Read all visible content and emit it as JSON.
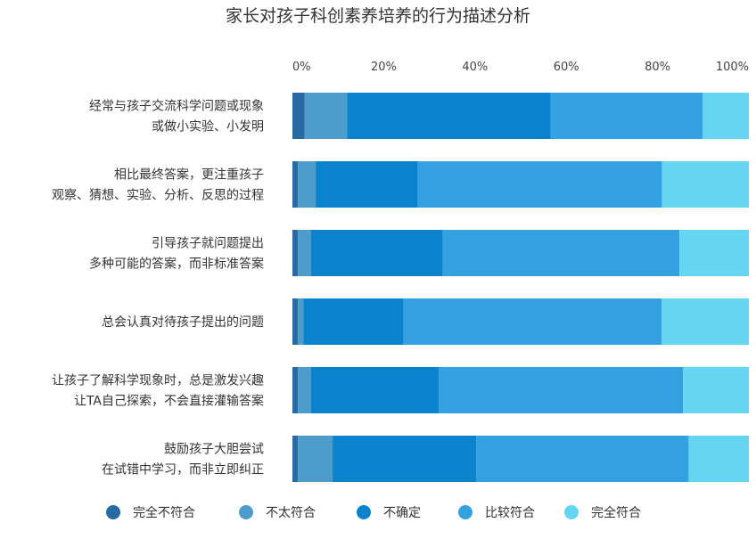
{
  "chart_data": {
    "type": "bar",
    "orientation": "horizontal",
    "stacked": true,
    "percent": true,
    "title": "家长对孩子科创素养培养的行为描述分析",
    "xlim": [
      0,
      100
    ],
    "x_ticks": [
      "0%",
      "20%",
      "40%",
      "60%",
      "80%",
      "100%"
    ],
    "legend_position": "bottom",
    "categories": [
      [
        "经常与孩子交流科学问题或现象",
        "或做小实验、小发明"
      ],
      [
        "相比最终答案，更注重孩子",
        "观察、猜想、实验、分析、反思的过程"
      ],
      [
        "引导孩子就问题提出",
        "多种可能的答案，而非标准答案"
      ],
      [
        "总会认真对待孩子提出的问题"
      ],
      [
        "让孩子了解科学现象时，总是激发兴趣",
        "让TA自己探索，不会直接灌输答案"
      ],
      [
        "鼓励孩子大胆尝试",
        "在试错中学习，而非立即纠正"
      ]
    ],
    "series": [
      {
        "name": "完全不符合",
        "color": "#2a6aa3",
        "values": [
          2.7,
          1.2,
          1.2,
          1.2,
          1.2,
          1.2
        ]
      },
      {
        "name": "不太符合",
        "color": "#4d9ccc",
        "values": [
          9.3,
          3.9,
          2.9,
          1.2,
          2.9,
          7.6
        ]
      },
      {
        "name": "不确定",
        "color": "#0b82cc",
        "values": [
          44.6,
          22.4,
          28.8,
          21.9,
          28.0,
          31.5
        ]
      },
      {
        "name": "比较符合",
        "color": "#34a2e0",
        "values": [
          33.3,
          53.5,
          51.9,
          56.6,
          53.5,
          46.5
        ]
      },
      {
        "name": "完全符合",
        "color": "#66d4f3",
        "values": [
          10.1,
          19.0,
          15.2,
          19.1,
          14.4,
          13.2
        ]
      }
    ]
  }
}
